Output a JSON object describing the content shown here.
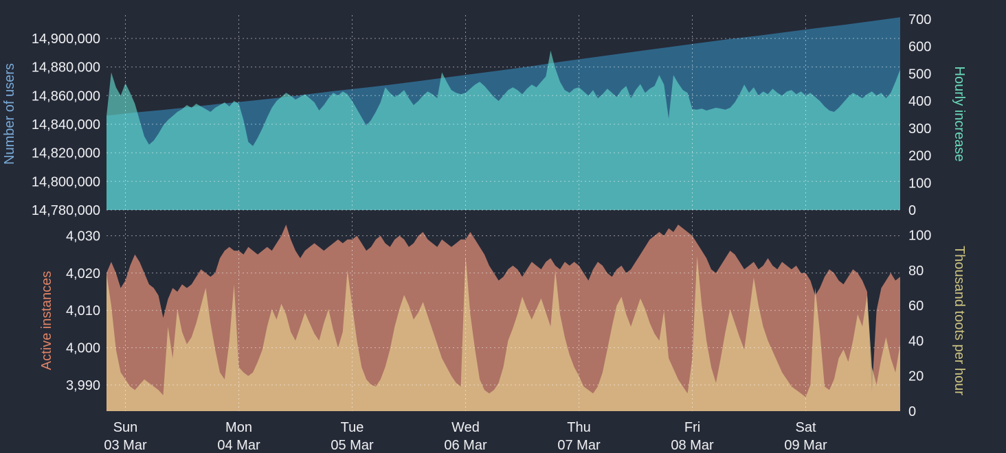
{
  "colors": {
    "background": "#252A37",
    "tick_text": "#F0F1F3",
    "grid": "rgba(255,255,255,0.5)"
  },
  "x_axis": {
    "hours_total": 168,
    "day_ticks": [
      {
        "hour": 4,
        "line1": "Sun",
        "line2": "03 Mar"
      },
      {
        "hour": 28,
        "line1": "Mon",
        "line2": "04 Mar"
      },
      {
        "hour": 52,
        "line1": "Tue",
        "line2": "05 Mar"
      },
      {
        "hour": 76,
        "line1": "Wed",
        "line2": "06 Mar"
      },
      {
        "hour": 100,
        "line1": "Thu",
        "line2": "07 Mar"
      },
      {
        "hour": 124,
        "line1": "Fri",
        "line2": "08 Mar"
      },
      {
        "hour": 148,
        "line1": "Sat",
        "line2": "09 Mar"
      }
    ]
  },
  "chart_data": [
    {
      "type": "area",
      "panel": "top",
      "left_axis": {
        "title": "Number of users",
        "title_color": "#79ABD8",
        "range": [
          14780000,
          14916300
        ],
        "grid": true,
        "ticks": [
          {
            "v": 14780000,
            "label": "14,780,000"
          },
          {
            "v": 14800000,
            "label": "14,800,000"
          },
          {
            "v": 14820000,
            "label": "14,820,000"
          },
          {
            "v": 14840000,
            "label": "14,840,000"
          },
          {
            "v": 14860000,
            "label": "14,860,000"
          },
          {
            "v": 14880000,
            "label": "14,880,000"
          },
          {
            "v": 14900000,
            "label": "14,900,000"
          }
        ]
      },
      "right_axis": {
        "title": "Hourly increase",
        "title_color": "#69DBB8",
        "range": [
          0,
          715
        ],
        "grid": false,
        "ticks": [
          {
            "v": 0,
            "label": "0"
          },
          {
            "v": 100,
            "label": "100"
          },
          {
            "v": 200,
            "label": "200"
          },
          {
            "v": 300,
            "label": "300"
          },
          {
            "v": 400,
            "label": "400"
          },
          {
            "v": 500,
            "label": "500"
          },
          {
            "v": 600,
            "label": "600"
          },
          {
            "v": 700,
            "label": "700"
          }
        ]
      },
      "series": [
        {
          "id": "number-of-users-area",
          "name": "Number of users",
          "axis": "left",
          "fill": "#2E6587",
          "x_hours": [
            0,
            6,
            12,
            18,
            24,
            30,
            36,
            42,
            48,
            54,
            60,
            66,
            72,
            78,
            84,
            90,
            96,
            102,
            108,
            114,
            120,
            126,
            132,
            138,
            144,
            150,
            156,
            162,
            168
          ],
          "values": [
            14846000,
            14848200,
            14850000,
            14852100,
            14854300,
            14856200,
            14858300,
            14860700,
            14863100,
            14865300,
            14867600,
            14870100,
            14872700,
            14875300,
            14877900,
            14880600,
            14883600,
            14886300,
            14889000,
            14891700,
            14894300,
            14897000,
            14899600,
            14901900,
            14904500,
            14907100,
            14909500,
            14912100,
            14914800
          ]
        },
        {
          "id": "hourly-increase-area",
          "name": "Hourly increase",
          "axis": "right",
          "fill": "rgba(100,220,205,0.62)",
          "values": [
            345,
            505,
            450,
            420,
            465,
            430,
            390,
            330,
            270,
            240,
            255,
            280,
            310,
            330,
            345,
            360,
            370,
            385,
            375,
            390,
            380,
            370,
            360,
            375,
            385,
            395,
            380,
            400,
            390,
            330,
            250,
            235,
            265,
            300,
            340,
            375,
            400,
            415,
            430,
            420,
            405,
            415,
            425,
            410,
            395,
            365,
            385,
            410,
            430,
            420,
            435,
            425,
            400,
            370,
            340,
            310,
            330,
            360,
            395,
            450,
            430,
            415,
            425,
            440,
            410,
            385,
            400,
            420,
            435,
            425,
            410,
            505,
            470,
            440,
            430,
            425,
            430,
            445,
            460,
            470,
            455,
            435,
            415,
            400,
            420,
            440,
            450,
            440,
            425,
            445,
            460,
            450,
            470,
            490,
            585,
            520,
            470,
            440,
            430,
            445,
            450,
            435,
            420,
            440,
            410,
            425,
            445,
            430,
            415,
            440,
            455,
            410,
            440,
            462,
            430,
            445,
            455,
            495,
            460,
            335,
            495,
            465,
            440,
            430,
            370,
            368,
            372,
            365,
            370,
            375,
            372,
            368,
            375,
            395,
            425,
            460,
            430,
            450,
            420,
            435,
            425,
            445,
            430,
            420,
            435,
            440,
            425,
            435,
            420,
            430,
            415,
            400,
            380,
            365,
            360,
            375,
            395,
            415,
            430,
            420,
            410,
            425,
            435,
            420,
            430,
            410,
            430,
            470,
            515
          ]
        }
      ]
    },
    {
      "type": "area",
      "panel": "bottom",
      "left_axis": {
        "title": "Active instances",
        "title_color": "#E08465",
        "range": [
          3983,
          4033.4
        ],
        "grid": true,
        "ticks": [
          {
            "v": 3990,
            "label": "3,990"
          },
          {
            "v": 4000,
            "label": "4,000"
          },
          {
            "v": 4010,
            "label": "4,010"
          },
          {
            "v": 4020,
            "label": "4,020"
          },
          {
            "v": 4030,
            "label": "4,030"
          }
        ]
      },
      "right_axis": {
        "title": "Thousand toots per hour",
        "title_color": "#CCC47F",
        "range": [
          0,
          106.8
        ],
        "grid": false,
        "ticks": [
          {
            "v": 0,
            "label": "0"
          },
          {
            "v": 20,
            "label": "20"
          },
          {
            "v": 40,
            "label": "40"
          },
          {
            "v": 60,
            "label": "60"
          },
          {
            "v": 80,
            "label": "80"
          },
          {
            "v": 100,
            "label": "100"
          }
        ]
      },
      "series": [
        {
          "id": "active-instances-area",
          "name": "Active instances",
          "axis": "left",
          "fill": "#AE7365",
          "values": [
            4020,
            4023,
            4020,
            4016,
            4018,
            4022,
            4025,
            4023,
            4020,
            4017,
            4016,
            4014,
            4008,
            4013,
            4016,
            4015,
            4017,
            4016,
            4017,
            4019,
            4021,
            4020,
            4019,
            4020,
            4024,
            4026,
            4027,
            4026,
            4026,
            4025,
            4027,
            4026,
            4025,
            4026,
            4027,
            4026,
            4028,
            4030,
            4033,
            4029,
            4026,
            4024,
            4026,
            4027,
            4028,
            4027,
            4026,
            4027,
            4028,
            4029,
            4028,
            4029,
            4029,
            4030,
            4028,
            4026,
            4027,
            4029,
            4030,
            4028,
            4027,
            4029,
            4030,
            4029,
            4027,
            4028,
            4030,
            4031,
            4029,
            4028,
            4027,
            4029,
            4028,
            4027,
            4028,
            4029,
            4029,
            4031,
            4029,
            4027,
            4025,
            4022,
            4020,
            4018,
            4019,
            4021,
            4022,
            4021,
            4019,
            4021,
            4023,
            4022,
            4021,
            4023,
            4024,
            4022,
            4021,
            4023,
            4022,
            4023,
            4022,
            4020,
            4018,
            4021,
            4023,
            4022,
            4020,
            4019,
            4021,
            4022,
            4020,
            4021,
            4023,
            4025,
            4027,
            4029,
            4030,
            4031,
            4030,
            4032,
            4031,
            4033,
            4032,
            4031,
            4030,
            4028,
            4026,
            4024,
            4021,
            4020,
            4022,
            4024,
            4026,
            4025,
            4023,
            4021,
            4022,
            4023,
            4021,
            4022,
            4024,
            4022,
            4021,
            4023,
            4022,
            4021,
            4022,
            4020,
            4020,
            4018,
            4014,
            4016,
            4019,
            4021,
            4020,
            4018,
            4017,
            4019,
            4021,
            4020,
            4018,
            4015,
            3988,
            4010,
            4016,
            4018,
            4020,
            4018,
            4019
          ]
        },
        {
          "id": "toots-per-hour-area",
          "name": "Thousand toots per hour",
          "axis": "right",
          "fill": "rgba(223,194,137,0.78)",
          "values": [
            78,
            60,
            35,
            22,
            18,
            14,
            12,
            15,
            18,
            16,
            14,
            12,
            9,
            48,
            30,
            58,
            45,
            38,
            42,
            50,
            60,
            70,
            50,
            35,
            22,
            18,
            40,
            72,
            25,
            22,
            20,
            22,
            28,
            35,
            48,
            58,
            52,
            61,
            55,
            45,
            40,
            48,
            56,
            50,
            44,
            40,
            50,
            58,
            46,
            36,
            45,
            80,
            60,
            40,
            25,
            18,
            15,
            14,
            18,
            25,
            35,
            48,
            58,
            66,
            60,
            52,
            56,
            62,
            54,
            46,
            38,
            30,
            25,
            20,
            16,
            14,
            88,
            55,
            35,
            18,
            12,
            10,
            12,
            16,
            25,
            40,
            47,
            55,
            65,
            58,
            52,
            58,
            64,
            56,
            48,
            80,
            55,
            42,
            32,
            25,
            20,
            14,
            12,
            10,
            14,
            22,
            35,
            48,
            60,
            65,
            55,
            48,
            56,
            64,
            58,
            50,
            44,
            40,
            57,
            30,
            24,
            18,
            14,
            10,
            30,
            88,
            60,
            40,
            25,
            16,
            30,
            45,
            58,
            50,
            42,
            35,
            55,
            76,
            60,
            48,
            40,
            34,
            28,
            22,
            18,
            14,
            12,
            10,
            8,
            15,
            70,
            45,
            14,
            12,
            18,
            30,
            35,
            28,
            40,
            55,
            48,
            66,
            25,
            15,
            30,
            42,
            30,
            22,
            38
          ]
        }
      ]
    }
  ]
}
